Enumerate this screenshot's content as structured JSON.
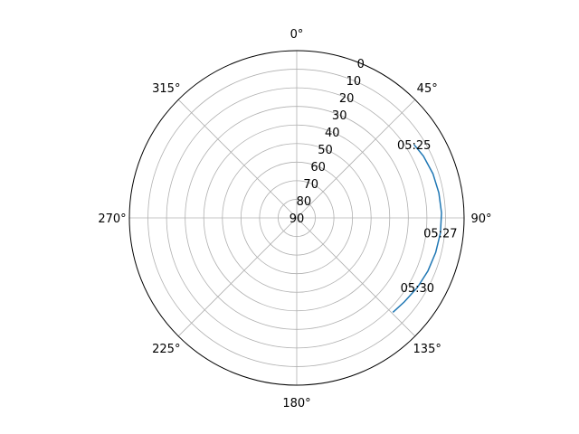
{
  "chart_data": {
    "type": "polar-line",
    "theta_direction": "clockwise",
    "theta_zero_location": "top",
    "r_axis": {
      "inverted": true,
      "range": [
        0,
        90
      ],
      "ticks": [
        0,
        10,
        20,
        30,
        40,
        50,
        60,
        70,
        80,
        90
      ],
      "tick_labels": [
        "0",
        "10",
        "20",
        "30",
        "40",
        "50",
        "60",
        "70",
        "80",
        "90"
      ]
    },
    "theta_ticks": [
      {
        "deg": 0,
        "label": "0°"
      },
      {
        "deg": 45,
        "label": "45°"
      },
      {
        "deg": 90,
        "label": "90°"
      },
      {
        "deg": 135,
        "label": "135°"
      },
      {
        "deg": 180,
        "label": "180°"
      },
      {
        "deg": 225,
        "label": "225°"
      },
      {
        "deg": 270,
        "label": "270°"
      },
      {
        "deg": 315,
        "label": "315°"
      }
    ],
    "grid": true,
    "series": [
      {
        "color": "#1f77b4",
        "points": [
          {
            "az": 58.0,
            "el": 15.6
          },
          {
            "az": 64.0,
            "el": 14.2
          },
          {
            "az": 72.0,
            "el": 13.0
          },
          {
            "az": 80.0,
            "el": 12.4
          },
          {
            "az": 88.0,
            "el": 12.1
          },
          {
            "az": 96.0,
            "el": 12.3
          },
          {
            "az": 104.0,
            "el": 13.0
          },
          {
            "az": 112.0,
            "el": 13.9
          },
          {
            "az": 120.0,
            "el": 15.1
          },
          {
            "az": 128.0,
            "el": 16.6
          },
          {
            "az": 134.5,
            "el": 17.5
          }
        ]
      }
    ],
    "annotations": [
      {
        "label": "05:25",
        "az": 58.0,
        "el": 15.6
      },
      {
        "label": "05:27",
        "az": 96.0,
        "el": 12.3
      },
      {
        "label": "05:30",
        "az": 120.0,
        "el": 15.1
      }
    ]
  }
}
